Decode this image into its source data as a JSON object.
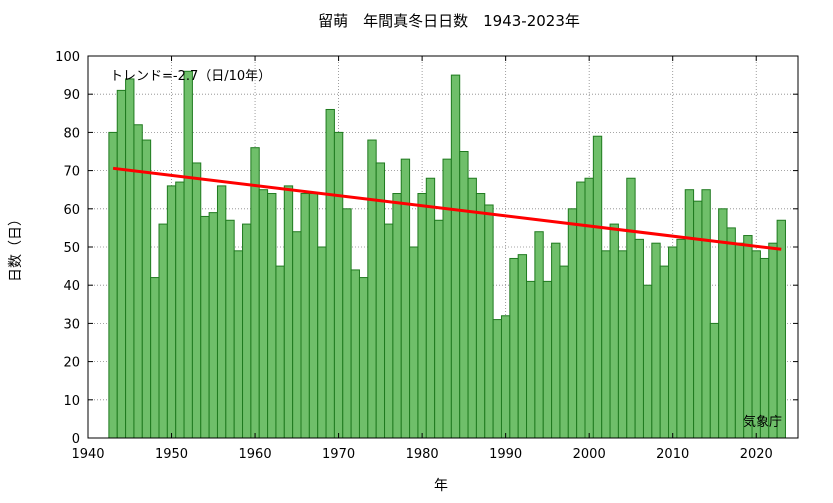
{
  "chart_data": {
    "type": "bar",
    "title": "留萌　年間真冬日日数　1943-2023年",
    "xlabel": "年",
    "ylabel": "日数（日）",
    "xlim": [
      1940,
      2025
    ],
    "ylim": [
      0,
      100
    ],
    "xticks": [
      1940,
      1950,
      1960,
      1970,
      1980,
      1990,
      2000,
      2010,
      2020
    ],
    "yticks": [
      0,
      10,
      20,
      30,
      40,
      50,
      60,
      70,
      80,
      90,
      100
    ],
    "grid": true,
    "bar_color": "#6fbf6a",
    "bar_edge_color": "#1f7a1f",
    "trend_color": "#ff0000",
    "trend_label": "トレンド=-2.7（日/10年）",
    "trend_line": {
      "x": [
        1943,
        2023
      ],
      "y": [
        70.6,
        49.4
      ]
    },
    "source_label": "気象庁",
    "x": [
      1943,
      1944,
      1945,
      1946,
      1947,
      1948,
      1949,
      1950,
      1951,
      1952,
      1953,
      1954,
      1955,
      1956,
      1957,
      1958,
      1959,
      1960,
      1961,
      1962,
      1963,
      1964,
      1965,
      1966,
      1967,
      1968,
      1969,
      1970,
      1971,
      1972,
      1973,
      1974,
      1975,
      1976,
      1977,
      1978,
      1979,
      1980,
      1981,
      1982,
      1983,
      1984,
      1985,
      1986,
      1987,
      1988,
      1989,
      1990,
      1991,
      1992,
      1993,
      1994,
      1995,
      1996,
      1997,
      1998,
      1999,
      2000,
      2001,
      2002,
      2003,
      2004,
      2005,
      2006,
      2007,
      2008,
      2009,
      2010,
      2011,
      2012,
      2013,
      2014,
      2015,
      2016,
      2017,
      2018,
      2019,
      2020,
      2021,
      2022,
      2023
    ],
    "values": [
      80,
      91,
      94,
      82,
      78,
      42,
      56,
      66,
      67,
      96,
      72,
      58,
      59,
      66,
      57,
      49,
      56,
      76,
      65,
      64,
      45,
      66,
      54,
      64,
      64,
      50,
      86,
      80,
      60,
      44,
      42,
      78,
      72,
      56,
      64,
      73,
      50,
      64,
      68,
      57,
      73,
      95,
      75,
      68,
      64,
      61,
      31,
      32,
      47,
      48,
      41,
      54,
      41,
      51,
      45,
      60,
      67,
      68,
      79,
      49,
      56,
      49,
      68,
      52,
      40,
      51,
      45,
      50,
      52,
      65,
      62,
      65,
      30,
      60,
      55,
      51,
      53,
      49,
      47,
      51,
      57
    ]
  }
}
